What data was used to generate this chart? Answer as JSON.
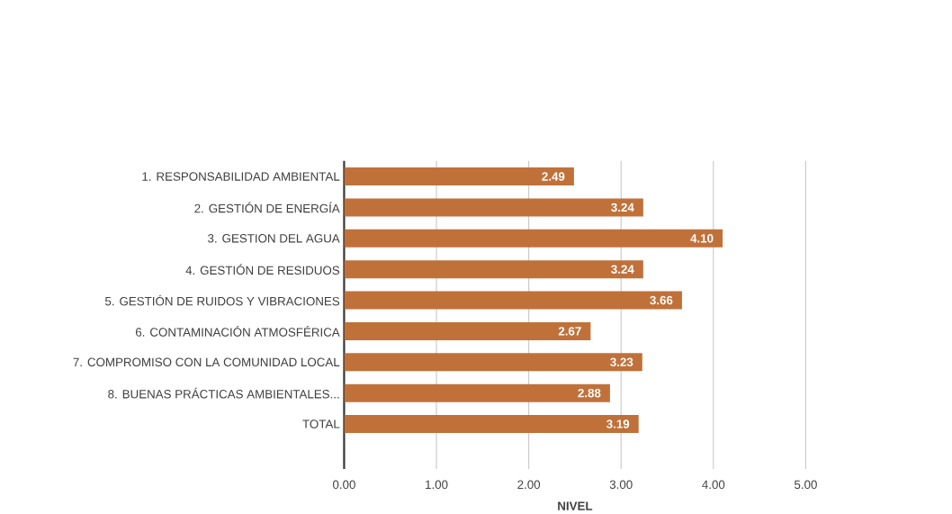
{
  "chart_data": {
    "type": "bar",
    "orientation": "horizontal",
    "xlabel": "NIVEL",
    "categories": [
      "1. RESPONSABILIDAD AMBIENTAL",
      "2. GESTIÓN DE ENERGÍA",
      "3. GESTION DEL AGUA",
      "4. GESTIÓN DE RESIDUOS",
      "5. GESTIÓN DE RUIDOS Y VIBRACIONES",
      "6. CONTAMINACIÓN ATMOSFÉRICA",
      "7. COMPROMISO CON LA COMUNIDAD LOCAL",
      "8. BUENAS PRÁCTICAS AMBIENTALES...",
      "TOTAL"
    ],
    "values": [
      2.49,
      3.24,
      4.1,
      3.24,
      3.66,
      2.67,
      3.23,
      2.88,
      3.19
    ],
    "value_labels": [
      "2.49",
      "3.24",
      "4.10",
      "3.24",
      "3.66",
      "2.67",
      "3.23",
      "2.88",
      "3.19"
    ],
    "color": "#c0713a",
    "xlim": [
      0,
      5
    ],
    "xticks": [
      {
        "value": 0,
        "label": "0.00"
      },
      {
        "value": 1,
        "label": "1.00"
      },
      {
        "value": 2,
        "label": "2.00"
      },
      {
        "value": 3,
        "label": "3.00"
      },
      {
        "value": 4,
        "label": "4.00"
      },
      {
        "value": 5,
        "label": "5.00"
      }
    ],
    "grid": "x"
  }
}
